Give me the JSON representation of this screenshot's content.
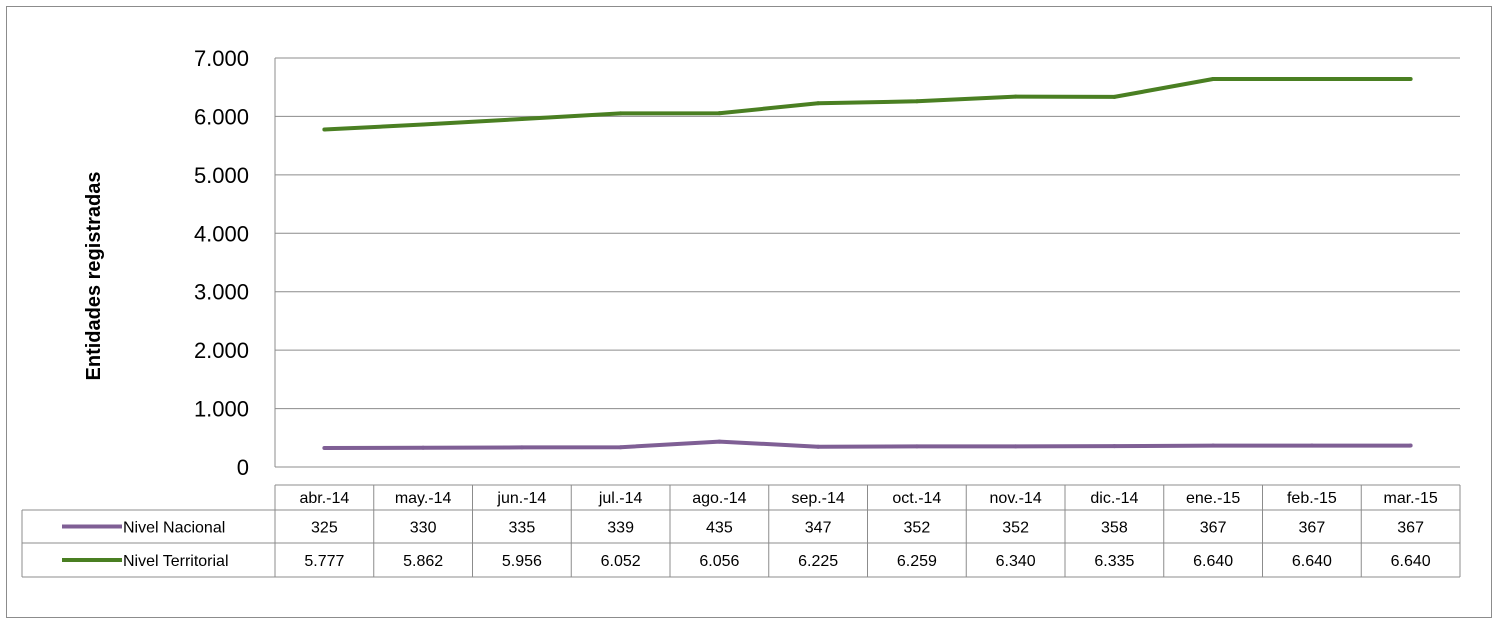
{
  "chart_data": {
    "type": "line",
    "title": "",
    "xlabel": "",
    "ylabel": "Entidades registradas",
    "ylim": [
      0,
      7000
    ],
    "yticks": [
      "0",
      "1.000",
      "2.000",
      "3.000",
      "4.000",
      "5.000",
      "6.000",
      "7.000"
    ],
    "ytick_values": [
      0,
      1000,
      2000,
      3000,
      4000,
      5000,
      6000,
      7000
    ],
    "grid": true,
    "legend": "data-table",
    "categories": [
      "abr.-14",
      "may.-14",
      "jun.-14",
      "jul.-14",
      "ago.-14",
      "sep.-14",
      "oct.-14",
      "nov.-14",
      "dic.-14",
      "ene.-15",
      "feb.-15",
      "mar.-15"
    ],
    "series": [
      {
        "name": "Nivel Nacional",
        "color": "#7f5f95",
        "values": [
          325,
          330,
          335,
          339,
          435,
          347,
          352,
          352,
          358,
          367,
          367,
          367
        ],
        "labels": [
          "325",
          "330",
          "335",
          "339",
          "435",
          "347",
          "352",
          "352",
          "358",
          "367",
          "367",
          "367"
        ]
      },
      {
        "name": "Nivel Territorial",
        "color": "#4a7f22",
        "values": [
          5777,
          5862,
          5956,
          6052,
          6056,
          6225,
          6259,
          6340,
          6335,
          6640,
          6640,
          6640
        ],
        "labels": [
          "5.777",
          "5.862",
          "5.956",
          "6.052",
          "6.056",
          "6.225",
          "6.259",
          "6.340",
          "6.335",
          "6.640",
          "6.640",
          "6.640"
        ]
      }
    ]
  }
}
